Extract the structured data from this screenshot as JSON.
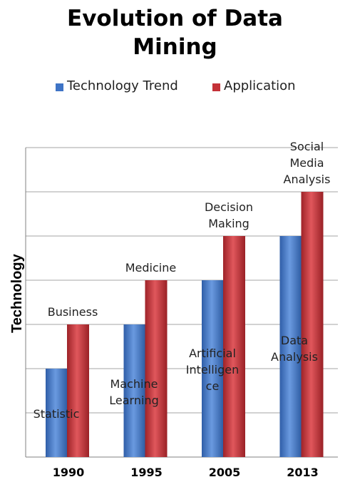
{
  "title_lines": [
    "Evolution of Data",
    "Mining"
  ],
  "legend": [
    {
      "label": "Technology Trend",
      "color": "#3f74c6"
    },
    {
      "label": "Application",
      "color": "#c43238"
    }
  ],
  "chart_data": {
    "type": "bar",
    "title": "Evolution of Data Mining",
    "xlabel": "",
    "ylabel": "Technology",
    "categories": [
      "1990",
      "1995",
      "2005",
      "2013"
    ],
    "series": [
      {
        "name": "Technology Trend",
        "values": [
          2,
          3,
          4,
          5
        ],
        "color": "#3f74c6"
      },
      {
        "name": "Application",
        "values": [
          3,
          4,
          5,
          6
        ],
        "color": "#c43238"
      }
    ],
    "bar_labels": {
      "Technology Trend": [
        [
          "Statistic"
        ],
        [
          "Machine",
          "Learning"
        ],
        [
          "Artificial",
          "Intelligen",
          "ce"
        ],
        [
          "Data",
          "Analysis"
        ]
      ],
      "Application": [
        [
          "Business"
        ],
        [
          "Medicine"
        ],
        [
          "Decision",
          "Making"
        ],
        [
          "Social",
          "Media",
          "Analysis"
        ]
      ]
    },
    "ylim": [
      0,
      7
    ],
    "grid": true,
    "legend_position": "top"
  }
}
